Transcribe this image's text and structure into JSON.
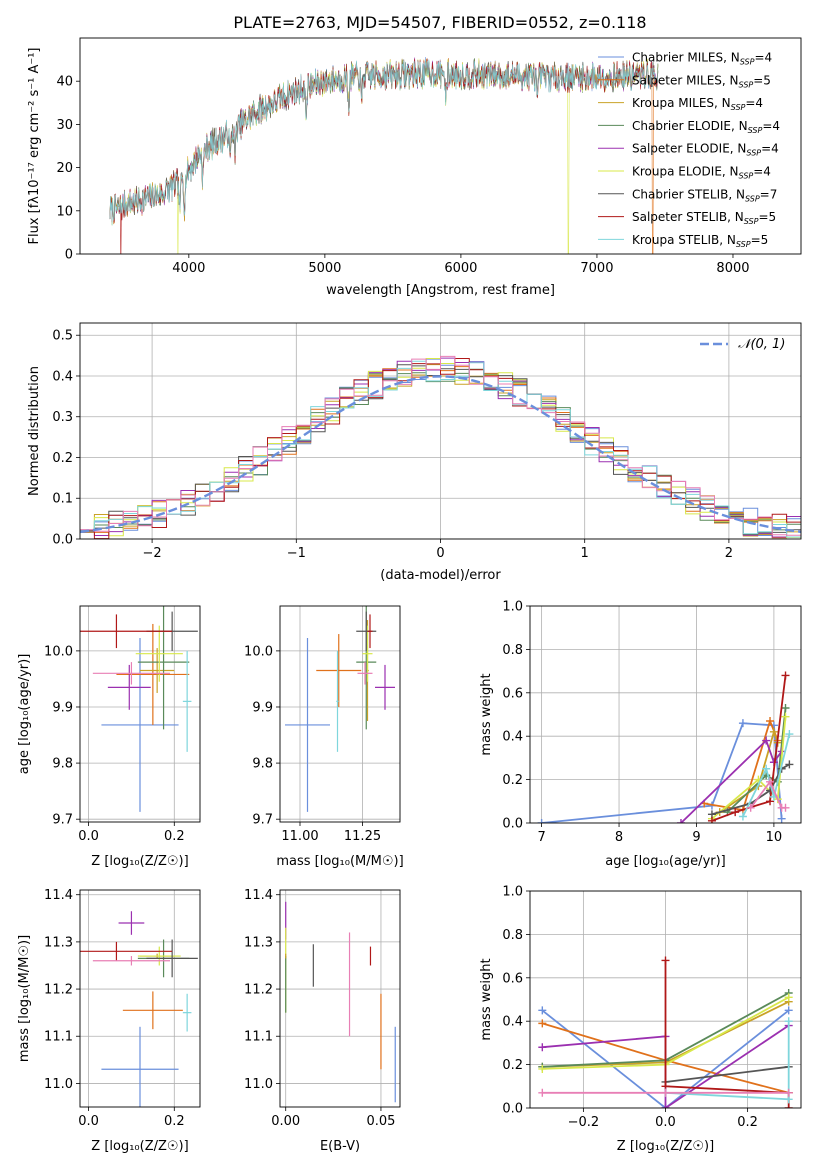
{
  "figure": {
    "title": "PLATE=2763, MJD=54507, FIBERID=0552, z=0.118"
  },
  "chart_data": [
    {
      "id": "spectrum",
      "type": "line",
      "xlabel": "wavelength [Angstrom, rest frame]",
      "ylabel": "Flux [fλ10⁻¹⁷ erg cm⁻² s⁻¹ A⁻¹]",
      "xlim": [
        3200,
        8500
      ],
      "ylim": [
        0,
        50
      ],
      "xticks": [
        "4000",
        "5000",
        "6000",
        "7000",
        "8000"
      ],
      "yticks": [
        "0",
        "10",
        "20",
        "30",
        "40"
      ],
      "legend_position": "top-right",
      "wavelength_range": [
        3420,
        7450
      ],
      "continuum_shape": {
        "wavelength": [
          3420,
          3600,
          3800,
          3950,
          4100,
          4300,
          4500,
          4800,
          5000,
          5200,
          5500,
          5800,
          6000,
          6300,
          6600,
          7000,
          7400
        ],
        "flux": [
          10,
          12,
          14,
          17,
          24,
          28,
          33,
          38,
          40,
          41,
          41.5,
          42,
          41.5,
          41.5,
          41,
          41,
          41.5
        ]
      },
      "series": [
        {
          "name": "Chabrier MILES, N",
          "sub": "SSP",
          "suffix": "=4",
          "color": "#6a8fdc"
        },
        {
          "name": "Salpeter MILES, N",
          "sub": "SSP",
          "suffix": "=5",
          "color": "#e0711b"
        },
        {
          "name": "Kroupa MILES, N",
          "sub": "SSP",
          "suffix": "=4",
          "color": "#c9a227"
        },
        {
          "name": "Chabrier ELODIE, N",
          "sub": "SSP",
          "suffix": "=4",
          "color": "#5a8a5a"
        },
        {
          "name": "Salpeter ELODIE, N",
          "sub": "SSP",
          "suffix": "=4",
          "color": "#9b30b0"
        },
        {
          "name": "Kroupa ELODIE, N",
          "sub": "SSP",
          "suffix": "=4",
          "color": "#d8e84a"
        },
        {
          "name": "Chabrier STELIB, N",
          "sub": "SSP",
          "suffix": "=7",
          "color": "#555555"
        },
        {
          "name": "Salpeter STELIB, N",
          "sub": "SSP",
          "suffix": "=5",
          "color": "#b01818"
        },
        {
          "name": "Kroupa STELIB, N",
          "sub": "SSP",
          "suffix": "=5",
          "color": "#7fd6dc"
        }
      ],
      "dropouts": [
        {
          "series": 7,
          "x": 3500
        },
        {
          "series": 5,
          "x": 3920
        },
        {
          "series": 5,
          "x": 6790
        },
        {
          "series": 1,
          "x": 7410
        }
      ]
    },
    {
      "id": "residuals",
      "type": "line",
      "xlabel": "(data-model)/error",
      "ylabel": "Normed distribution",
      "xlim": [
        -2.5,
        2.5
      ],
      "ylim": [
        0,
        0.53
      ],
      "xticks": [
        "−2",
        "−1",
        "0",
        "1",
        "2"
      ],
      "yticks": [
        "0.0",
        "0.1",
        "0.2",
        "0.3",
        "0.4",
        "0.5"
      ],
      "grid": true,
      "legend_position": "top-right",
      "normal_label": "𝒩(0, 1)",
      "normal_color": "#6a8fdc",
      "hist_bin_width": 0.1,
      "hist_series_colors": [
        "#6a8fdc",
        "#e0711b",
        "#c9a227",
        "#5a8a5a",
        "#9b30b0",
        "#d8e84a",
        "#555555",
        "#b01818",
        "#7fd6dc",
        "#e87fb5"
      ]
    },
    {
      "id": "age_vs_z",
      "type": "scatter",
      "xlabel": "Z [log₁₀(Z/Z☉)]",
      "ylabel": "age  [log₁₀(age/yr)]",
      "xlim": [
        -0.02,
        0.26
      ],
      "ylim": [
        9.695,
        10.08
      ],
      "xticks": [
        "0.0",
        "0.2"
      ],
      "yticks": [
        "9.7",
        "9.8",
        "9.9",
        "10.0"
      ],
      "grid": true,
      "points": [
        {
          "x": 0.12,
          "xerr": 0.09,
          "y": 9.868,
          "yerr": 0.155,
          "color": "#6a8fdc"
        },
        {
          "x": 0.15,
          "xerr": 0.085,
          "y": 9.958,
          "yerr": 0.09,
          "color": "#e0711b"
        },
        {
          "x": 0.16,
          "xerr": 0.04,
          "y": 9.965,
          "yerr": 0.04,
          "color": "#c9a227"
        },
        {
          "x": 0.175,
          "xerr": 0.06,
          "y": 9.98,
          "yerr": 0.12,
          "color": "#5a8a5a"
        },
        {
          "x": 0.095,
          "xerr": 0.05,
          "y": 9.935,
          "yerr": 0.04,
          "color": "#9b30b0"
        },
        {
          "x": 0.165,
          "xerr": 0.055,
          "y": 9.995,
          "yerr": 0.05,
          "color": "#d8e84a"
        },
        {
          "x": 0.195,
          "xerr": 0.06,
          "y": 10.035,
          "yerr": 0.035,
          "color": "#555555"
        },
        {
          "x": 0.065,
          "xerr": 0.13,
          "y": 10.035,
          "yerr": 0.03,
          "color": "#b01818"
        },
        {
          "x": 0.23,
          "xerr": 0.01,
          "y": 9.91,
          "yerr": 0.09,
          "color": "#7fd6dc"
        },
        {
          "x": 0.1,
          "xerr": 0.09,
          "y": 9.96,
          "yerr": 0.02,
          "color": "#e87fb5"
        }
      ]
    },
    {
      "id": "age_vs_mass",
      "type": "scatter",
      "xlabel": "mass [log₁₀(M/M☉)]",
      "ylabel": "",
      "xlim": [
        10.92,
        11.4
      ],
      "ylim": [
        9.695,
        10.08
      ],
      "xticks": [
        "11.00",
        "11.25"
      ],
      "yticks": [
        "9.7",
        "9.8",
        "9.9",
        "10.0"
      ],
      "grid": true,
      "points": [
        {
          "x": 11.03,
          "xerr": 0.09,
          "y": 9.868,
          "yerr": 0.155,
          "color": "#6a8fdc"
        },
        {
          "x": 11.155,
          "xerr": 0.09,
          "y": 9.965,
          "yerr": 0.065,
          "color": "#e0711b"
        },
        {
          "x": 11.27,
          "xerr": 0.005,
          "y": 9.965,
          "yerr": 0.09,
          "color": "#c9a227"
        },
        {
          "x": 11.265,
          "xerr": 0.04,
          "y": 9.98,
          "yerr": 0.12,
          "color": "#5a8a5a"
        },
        {
          "x": 11.34,
          "xerr": 0.04,
          "y": 9.935,
          "yerr": 0.04,
          "color": "#9b30b0"
        },
        {
          "x": 11.27,
          "xerr": 0.02,
          "y": 9.995,
          "yerr": 0.05,
          "color": "#d8e84a"
        },
        {
          "x": 11.265,
          "xerr": 0.04,
          "y": 10.035,
          "yerr": 0.035,
          "color": "#555555"
        },
        {
          "x": 11.28,
          "xerr": 0.01,
          "y": 10.035,
          "yerr": 0.03,
          "color": "#b01818"
        },
        {
          "x": 11.15,
          "xerr": 0.005,
          "y": 9.91,
          "yerr": 0.09,
          "color": "#7fd6dc"
        },
        {
          "x": 11.26,
          "xerr": 0.03,
          "y": 9.96,
          "yerr": 0.02,
          "color": "#e87fb5"
        }
      ]
    },
    {
      "id": "weight_vs_age",
      "type": "line",
      "xlabel": "age  [log₁₀(age/yr)]",
      "ylabel": "mass weight",
      "xlim": [
        6.85,
        10.35
      ],
      "ylim": [
        0,
        1
      ],
      "xticks": [
        "7",
        "8",
        "9",
        "10"
      ],
      "yticks": [
        "0.0",
        "0.2",
        "0.4",
        "0.6",
        "0.8",
        "1.0"
      ],
      "grid": true,
      "series": [
        {
          "color": "#6a8fdc",
          "x": [
            7.0,
            9.2,
            9.6,
            10.0,
            10.1
          ],
          "y": [
            0.0,
            0.08,
            0.46,
            0.45,
            0.02
          ]
        },
        {
          "color": "#e0711b",
          "x": [
            9.1,
            9.6,
            9.95,
            10.05
          ],
          "y": [
            0.09,
            0.06,
            0.47,
            0.38
          ]
        },
        {
          "color": "#c9a227",
          "x": [
            9.3,
            9.8,
            10.0,
            10.05
          ],
          "y": [
            0.05,
            0.17,
            0.42,
            0.37
          ]
        },
        {
          "color": "#5a8a5a",
          "x": [
            9.4,
            9.9,
            10.05,
            10.15
          ],
          "y": [
            0.05,
            0.22,
            0.19,
            0.53
          ]
        },
        {
          "color": "#9b30b0",
          "x": [
            8.8,
            9.9,
            10.0,
            10.1
          ],
          "y": [
            0.0,
            0.38,
            0.28,
            0.33
          ]
        },
        {
          "color": "#d8e84a",
          "x": [
            9.2,
            9.8,
            10.05,
            10.15
          ],
          "y": [
            0.02,
            0.2,
            0.11,
            0.49
          ]
        },
        {
          "color": "#555555",
          "x": [
            9.2,
            9.7,
            9.95,
            10.1,
            10.2
          ],
          "y": [
            0.04,
            0.09,
            0.15,
            0.25,
            0.27
          ]
        },
        {
          "color": "#b01818",
          "x": [
            9.2,
            9.5,
            9.95,
            10.15
          ],
          "y": [
            0.01,
            0.05,
            0.1,
            0.68
          ]
        },
        {
          "color": "#7fd6dc",
          "x": [
            9.6,
            9.9,
            10.0,
            10.2
          ],
          "y": [
            0.03,
            0.25,
            0.12,
            0.41
          ]
        },
        {
          "color": "#e87fb5",
          "x": [
            9.7,
            9.95,
            10.1,
            10.15
          ],
          "y": [
            0.07,
            0.19,
            0.07,
            0.07
          ]
        }
      ]
    },
    {
      "id": "mass_vs_z",
      "type": "scatter",
      "xlabel": "Z [log₁₀(Z/Z☉)]",
      "ylabel": "mass [log₁₀(M/M☉)]",
      "xlim": [
        -0.02,
        0.26
      ],
      "ylim": [
        10.95,
        11.41
      ],
      "xticks": [
        "0.0",
        "0.2"
      ],
      "yticks": [
        "11.0",
        "11.1",
        "11.2",
        "11.3",
        "11.4"
      ],
      "grid": true,
      "points": [
        {
          "x": 0.12,
          "xerr": 0.09,
          "y": 11.03,
          "yerr": 0.09,
          "color": "#6a8fdc"
        },
        {
          "x": 0.15,
          "xerr": 0.07,
          "y": 11.155,
          "yerr": 0.04,
          "color": "#e0711b"
        },
        {
          "x": 0.16,
          "xerr": 0.04,
          "y": 11.27,
          "yerr": 0.005,
          "color": "#c9a227"
        },
        {
          "x": 0.175,
          "xerr": 0.06,
          "y": 11.265,
          "yerr": 0.04,
          "color": "#5a8a5a"
        },
        {
          "x": 0.1,
          "xerr": 0.03,
          "y": 11.34,
          "yerr": 0.025,
          "color": "#9b30b0"
        },
        {
          "x": 0.165,
          "xerr": 0.05,
          "y": 11.27,
          "yerr": 0.02,
          "color": "#d8e84a"
        },
        {
          "x": 0.195,
          "xerr": 0.06,
          "y": 11.265,
          "yerr": 0.04,
          "color": "#555555"
        },
        {
          "x": 0.065,
          "xerr": 0.13,
          "y": 11.28,
          "yerr": 0.02,
          "color": "#b01818"
        },
        {
          "x": 0.23,
          "xerr": 0.01,
          "y": 11.15,
          "yerr": 0.04,
          "color": "#7fd6dc"
        },
        {
          "x": 0.1,
          "xerr": 0.09,
          "y": 11.26,
          "yerr": 0.01,
          "color": "#e87fb5"
        }
      ]
    },
    {
      "id": "mass_vs_ebv",
      "type": "scatter",
      "xlabel": "E(B-V)",
      "ylabel": "",
      "xlim": [
        -0.003,
        0.06
      ],
      "ylim": [
        10.95,
        11.41
      ],
      "xticks": [
        "0.00",
        "0.05"
      ],
      "yticks": [
        "11.0",
        "11.1",
        "11.2",
        "11.3",
        "11.4"
      ],
      "grid": true,
      "points": [
        {
          "x": 0.0,
          "y": 11.345,
          "yerr": 0.04,
          "color": "#9b30b0"
        },
        {
          "x": 0.0,
          "y": 11.24,
          "yerr": 0.09,
          "color": "#d8e84a"
        },
        {
          "x": 0.0,
          "y": 11.21,
          "yerr": 0.06,
          "color": "#5a8a5a"
        },
        {
          "x": 0.0,
          "y": 11.27,
          "yerr": 0.005,
          "color": "#c9a227"
        },
        {
          "x": 0.0145,
          "y": 11.25,
          "yerr": 0.045,
          "color": "#555555"
        },
        {
          "x": 0.0335,
          "y": 11.21,
          "yerr": 0.11,
          "color": "#e87fb5"
        },
        {
          "x": 0.0445,
          "y": 11.27,
          "yerr": 0.02,
          "color": "#b01818"
        },
        {
          "x": 0.05,
          "y": 11.11,
          "yerr": 0.08,
          "color": "#e0711b"
        },
        {
          "x": 0.0575,
          "y": 11.04,
          "yerr": 0.08,
          "color": "#6a8fdc"
        }
      ]
    },
    {
      "id": "weight_vs_z",
      "type": "line",
      "xlabel": "Z [log₁₀(Z/Z☉)]",
      "ylabel": "mass weight",
      "xlim": [
        -0.33,
        0.33
      ],
      "ylim": [
        0,
        1
      ],
      "xticks": [
        "−0.2",
        "0.0",
        "0.2"
      ],
      "yticks": [
        "0.0",
        "0.2",
        "0.4",
        "0.6",
        "0.8",
        "1.0"
      ],
      "grid": true,
      "series": [
        {
          "color": "#6a8fdc",
          "x": [
            -0.3,
            0.0,
            0.3
          ],
          "y": [
            0.45,
            0.0,
            0.45
          ]
        },
        {
          "color": "#e0711b",
          "x": [
            -0.3,
            0.0,
            0.3
          ],
          "y": [
            0.39,
            0.22,
            0.07
          ]
        },
        {
          "color": "#c9a227",
          "x": [
            -0.3,
            0.0,
            0.3
          ],
          "y": [
            0.19,
            0.21,
            0.49
          ]
        },
        {
          "color": "#5a8a5a",
          "x": [
            -0.3,
            0.0,
            0.3
          ],
          "y": [
            0.19,
            0.22,
            0.53
          ]
        },
        {
          "color": "#9b30b0",
          "x": [
            -0.3,
            0.0,
            0.0,
            0.3
          ],
          "y": [
            0.28,
            0.33,
            0.0,
            0.38
          ]
        },
        {
          "color": "#d8e84a",
          "x": [
            -0.3,
            0.0,
            0.3
          ],
          "y": [
            0.18,
            0.2,
            0.51
          ]
        },
        {
          "color": "#555555",
          "x": [
            0.0,
            0.3
          ],
          "y": [
            0.12,
            0.19
          ]
        },
        {
          "color": "#b01818",
          "x": [
            0.0,
            0.0,
            0.3,
            0.3
          ],
          "y": [
            0.68,
            0.1,
            0.07,
            0.0
          ]
        },
        {
          "color": "#7fd6dc",
          "x": [
            0.0,
            0.3,
            0.3
          ],
          "y": [
            0.07,
            0.04,
            0.4
          ]
        },
        {
          "color": "#e87fb5",
          "x": [
            -0.3,
            0.0,
            0.3
          ],
          "y": [
            0.07,
            0.07,
            0.07
          ]
        }
      ]
    }
  ]
}
